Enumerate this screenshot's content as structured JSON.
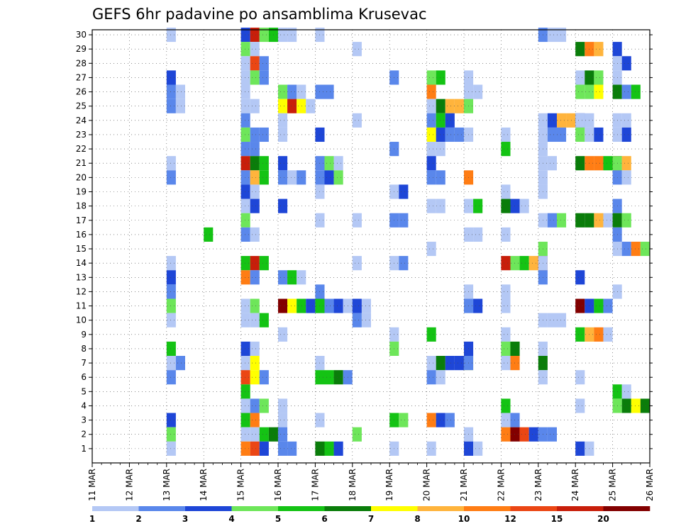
{
  "chart_data": {
    "type": "heatmap",
    "title": "GEFS 6hr padavine po ansamblima Krusevac",
    "x_tick_labels": [
      "11 MAR",
      "12 MAR",
      "13 MAR",
      "14 MAR",
      "15 MAR",
      "16 MAR",
      "17 MAR",
      "18 MAR",
      "19 MAR",
      "20 MAR",
      "21 MAR",
      "22 MAR",
      "23 MAR",
      "24 MAR",
      "25 MAR",
      "26 MAR"
    ],
    "x_range": [
      "11 MAR",
      "26 MAR"
    ],
    "time_step_hours": 6,
    "y_tick_labels": [
      "1",
      "2",
      "3",
      "4",
      "5",
      "6",
      "7",
      "8",
      "9",
      "10",
      "11",
      "12",
      "13",
      "14",
      "15",
      "16",
      "17",
      "18",
      "19",
      "20",
      "21",
      "22",
      "23",
      "24",
      "25",
      "26",
      "27",
      "28",
      "29",
      "30"
    ],
    "y_range": [
      0,
      30
    ],
    "grid": true,
    "colorbar": {
      "placement": "bottom",
      "labels": [
        "1",
        "2",
        "3",
        "4",
        "5",
        "6",
        "7",
        "8",
        "10",
        "12",
        "15",
        "20"
      ],
      "colors": [
        "#b4c8f5",
        "#5a87eb",
        "#1e46d7",
        "#6ee65a",
        "#14c314",
        "#0a7d0a",
        "#ffff00",
        "#ffb43c",
        "#ff7d14",
        "#eb4614",
        "#c81e0a",
        "#820000"
      ]
    },
    "cells": [
      [
        30,
        13,
        0
      ],
      [
        30,
        15,
        2
      ],
      [
        30,
        15,
        10
      ],
      [
        30,
        15,
        3
      ],
      [
        30,
        15,
        4
      ],
      [
        30,
        16,
        0
      ],
      [
        30,
        16,
        0
      ],
      [
        30,
        17,
        0
      ],
      [
        30,
        23,
        1
      ],
      [
        30,
        23,
        0
      ],
      [
        30,
        23,
        0
      ],
      [
        29,
        15,
        3
      ],
      [
        29,
        15,
        0
      ],
      [
        29,
        18,
        0
      ],
      [
        29,
        24,
        5
      ],
      [
        29,
        24,
        8
      ],
      [
        29,
        24,
        7
      ],
      [
        29,
        25,
        2
      ],
      [
        28,
        15,
        0
      ],
      [
        28,
        15,
        9
      ],
      [
        28,
        15,
        1
      ],
      [
        28,
        25,
        0
      ],
      [
        28,
        25,
        2
      ],
      [
        28,
        26,
        3
      ],
      [
        27,
        13,
        2
      ],
      [
        27,
        15,
        0
      ],
      [
        27,
        15,
        3
      ],
      [
        27,
        15,
        1
      ],
      [
        27,
        19,
        1
      ],
      [
        27,
        20,
        3
      ],
      [
        27,
        20,
        4
      ],
      [
        27,
        21,
        0
      ],
      [
        27,
        24,
        0
      ],
      [
        27,
        24,
        5
      ],
      [
        27,
        24,
        3
      ],
      [
        27,
        25,
        0
      ],
      [
        26,
        13,
        1
      ],
      [
        26,
        13,
        0
      ],
      [
        26,
        15,
        0
      ],
      [
        26,
        16,
        3
      ],
      [
        26,
        16,
        1
      ],
      [
        26,
        16,
        0
      ],
      [
        26,
        17,
        1
      ],
      [
        26,
        17,
        1
      ],
      [
        26,
        20,
        8
      ],
      [
        26,
        21,
        0
      ],
      [
        26,
        21,
        0
      ],
      [
        26,
        24,
        3
      ],
      [
        26,
        24,
        3
      ],
      [
        26,
        24,
        6
      ],
      [
        26,
        25,
        5
      ],
      [
        26,
        25,
        1
      ],
      [
        26,
        25,
        4
      ],
      [
        26,
        26,
        1
      ],
      [
        25,
        13,
        1
      ],
      [
        25,
        13,
        0
      ],
      [
        25,
        15,
        0
      ],
      [
        25,
        15,
        0
      ],
      [
        25,
        16,
        6
      ],
      [
        25,
        16,
        10
      ],
      [
        25,
        16,
        6
      ],
      [
        25,
        16,
        0
      ],
      [
        25,
        20,
        0
      ],
      [
        25,
        20,
        5
      ],
      [
        25,
        20,
        7
      ],
      [
        25,
        20,
        7
      ],
      [
        25,
        20,
        3
      ],
      [
        24,
        15,
        1
      ],
      [
        24,
        16,
        0
      ],
      [
        24,
        18,
        0
      ],
      [
        24,
        20,
        1
      ],
      [
        24,
        20,
        4
      ],
      [
        24,
        20,
        2
      ],
      [
        24,
        23,
        0
      ],
      [
        24,
        23,
        2
      ],
      [
        24,
        23,
        7
      ],
      [
        24,
        23,
        7
      ],
      [
        24,
        23,
        2
      ],
      [
        24,
        24,
        0
      ],
      [
        24,
        24,
        0
      ],
      [
        24,
        25,
        0
      ],
      [
        24,
        25,
        0
      ],
      [
        23,
        15,
        3
      ],
      [
        23,
        15,
        1
      ],
      [
        23,
        15,
        1
      ],
      [
        23,
        16,
        0
      ],
      [
        23,
        17,
        2
      ],
      [
        23,
        20,
        6
      ],
      [
        23,
        20,
        2
      ],
      [
        23,
        20,
        1
      ],
      [
        23,
        20,
        1
      ],
      [
        23,
        21,
        0
      ],
      [
        23,
        22,
        0
      ],
      [
        23,
        23,
        0
      ],
      [
        23,
        23,
        1
      ],
      [
        23,
        23,
        1
      ],
      [
        23,
        24,
        3
      ],
      [
        23,
        24,
        0
      ],
      [
        23,
        24,
        2
      ],
      [
        23,
        25,
        0
      ],
      [
        23,
        25,
        2
      ],
      [
        23,
        26,
        1
      ],
      [
        22,
        15,
        1
      ],
      [
        22,
        15,
        1
      ],
      [
        22,
        19,
        1
      ],
      [
        22,
        20,
        0
      ],
      [
        22,
        20,
        0
      ],
      [
        22,
        22,
        4
      ],
      [
        22,
        23,
        0
      ],
      [
        21,
        13,
        0
      ],
      [
        21,
        15,
        10
      ],
      [
        21,
        15,
        5
      ],
      [
        21,
        15,
        4
      ],
      [
        21,
        16,
        2
      ],
      [
        21,
        17,
        1
      ],
      [
        21,
        17,
        3
      ],
      [
        21,
        17,
        0
      ],
      [
        21,
        20,
        2
      ],
      [
        21,
        23,
        0
      ],
      [
        21,
        23,
        0
      ],
      [
        21,
        24,
        5
      ],
      [
        21,
        24,
        8
      ],
      [
        21,
        24,
        8
      ],
      [
        21,
        24,
        4
      ],
      [
        21,
        24,
        10
      ],
      [
        21,
        25,
        3
      ],
      [
        21,
        25,
        7
      ],
      [
        21,
        26,
        6
      ],
      [
        20,
        13,
        1
      ],
      [
        20,
        15,
        1
      ],
      [
        20,
        15,
        7
      ],
      [
        20,
        15,
        4
      ],
      [
        20,
        16,
        1
      ],
      [
        20,
        16,
        0
      ],
      [
        20,
        16,
        1
      ],
      [
        20,
        17,
        1
      ],
      [
        20,
        17,
        2
      ],
      [
        20,
        17,
        3
      ],
      [
        20,
        20,
        1
      ],
      [
        20,
        20,
        1
      ],
      [
        20,
        21,
        8
      ],
      [
        20,
        23,
        0
      ],
      [
        20,
        25,
        1
      ],
      [
        20,
        25,
        0
      ],
      [
        19,
        15,
        2
      ],
      [
        19,
        15,
        0
      ],
      [
        19,
        17,
        0
      ],
      [
        19,
        19,
        0
      ],
      [
        19,
        19,
        2
      ],
      [
        19,
        22,
        0
      ],
      [
        19,
        23,
        0
      ],
      [
        18,
        15,
        0
      ],
      [
        18,
        15,
        2
      ],
      [
        18,
        16,
        2
      ],
      [
        18,
        20,
        0
      ],
      [
        18,
        20,
        0
      ],
      [
        18,
        21,
        0
      ],
      [
        18,
        21,
        4
      ],
      [
        18,
        22,
        5
      ],
      [
        18,
        22,
        2
      ],
      [
        18,
        22,
        0
      ],
      [
        18,
        25,
        1
      ],
      [
        17,
        15,
        3
      ],
      [
        17,
        17,
        0
      ],
      [
        17,
        18,
        0
      ],
      [
        17,
        19,
        1
      ],
      [
        17,
        19,
        1
      ],
      [
        17,
        23,
        0
      ],
      [
        17,
        23,
        1
      ],
      [
        17,
        23,
        3
      ],
      [
        17,
        24,
        5
      ],
      [
        17,
        24,
        5
      ],
      [
        17,
        24,
        7
      ],
      [
        17,
        24,
        0
      ],
      [
        17,
        25,
        5
      ],
      [
        17,
        25,
        3
      ],
      [
        16,
        14,
        4
      ],
      [
        16,
        15,
        1
      ],
      [
        16,
        15,
        0
      ],
      [
        16,
        21,
        0
      ],
      [
        16,
        21,
        0
      ],
      [
        16,
        22,
        0
      ],
      [
        16,
        25,
        1
      ],
      [
        16,
        26,
        2
      ],
      [
        15,
        20,
        0
      ],
      [
        15,
        23,
        3
      ],
      [
        15,
        25,
        0
      ],
      [
        15,
        25,
        1
      ],
      [
        15,
        25,
        8
      ],
      [
        15,
        25,
        3
      ],
      [
        14,
        13,
        0
      ],
      [
        14,
        15,
        4
      ],
      [
        14,
        15,
        10
      ],
      [
        14,
        15,
        4
      ],
      [
        14,
        18,
        0
      ],
      [
        14,
        19,
        0
      ],
      [
        14,
        19,
        1
      ],
      [
        14,
        22,
        10
      ],
      [
        14,
        22,
        3
      ],
      [
        14,
        22,
        4
      ],
      [
        14,
        22,
        7
      ],
      [
        14,
        22,
        10
      ],
      [
        14,
        23,
        0
      ],
      [
        13,
        13,
        2
      ],
      [
        13,
        15,
        8
      ],
      [
        13,
        15,
        1
      ],
      [
        13,
        16,
        1
      ],
      [
        13,
        16,
        4
      ],
      [
        13,
        16,
        0
      ],
      [
        13,
        23,
        1
      ],
      [
        13,
        24,
        2
      ],
      [
        12,
        13,
        1
      ],
      [
        12,
        17,
        1
      ],
      [
        12,
        21,
        0
      ],
      [
        12,
        22,
        0
      ],
      [
        12,
        25,
        0
      ],
      [
        11,
        13,
        3
      ],
      [
        11,
        15,
        0
      ],
      [
        11,
        15,
        3
      ],
      [
        11,
        16,
        11
      ],
      [
        11,
        16,
        6
      ],
      [
        11,
        16,
        4
      ],
      [
        11,
        16,
        2
      ],
      [
        11,
        16,
        2
      ],
      [
        11,
        17,
        4
      ],
      [
        11,
        17,
        1
      ],
      [
        11,
        17,
        2
      ],
      [
        11,
        17,
        0
      ],
      [
        11,
        17,
        0
      ],
      [
        11,
        18,
        2
      ],
      [
        11,
        18,
        0
      ],
      [
        11,
        21,
        1
      ],
      [
        11,
        21,
        2
      ],
      [
        11,
        22,
        0
      ],
      [
        11,
        24,
        11
      ],
      [
        11,
        24,
        2
      ],
      [
        11,
        24,
        4
      ],
      [
        11,
        24,
        1
      ],
      [
        10,
        13,
        0
      ],
      [
        10,
        15,
        0
      ],
      [
        10,
        15,
        0
      ],
      [
        10,
        15,
        4
      ],
      [
        10,
        18,
        1
      ],
      [
        10,
        18,
        0
      ],
      [
        10,
        23,
        0
      ],
      [
        10,
        23,
        0
      ],
      [
        10,
        23,
        0
      ],
      [
        9,
        16,
        0
      ],
      [
        9,
        19,
        0
      ],
      [
        9,
        20,
        4
      ],
      [
        9,
        22,
        0
      ],
      [
        9,
        24,
        4
      ],
      [
        9,
        24,
        7
      ],
      [
        9,
        24,
        8
      ],
      [
        9,
        24,
        0
      ],
      [
        9,
        26,
        0
      ],
      [
        8,
        13,
        4
      ],
      [
        8,
        15,
        2
      ],
      [
        8,
        15,
        0
      ],
      [
        8,
        19,
        3
      ],
      [
        8,
        21,
        2
      ],
      [
        8,
        22,
        3
      ],
      [
        8,
        22,
        5
      ],
      [
        8,
        23,
        0
      ],
      [
        7,
        13,
        0
      ],
      [
        7,
        13,
        1
      ],
      [
        7,
        15,
        0
      ],
      [
        7,
        15,
        6
      ],
      [
        7,
        17,
        0
      ],
      [
        7,
        20,
        0
      ],
      [
        7,
        20,
        5
      ],
      [
        7,
        20,
        2
      ],
      [
        7,
        20,
        2
      ],
      [
        7,
        20,
        6
      ],
      [
        7,
        21,
        1
      ],
      [
        7,
        22,
        0
      ],
      [
        7,
        22,
        8
      ],
      [
        7,
        23,
        5
      ],
      [
        6,
        13,
        1
      ],
      [
        6,
        15,
        9
      ],
      [
        6,
        15,
        6
      ],
      [
        6,
        15,
        1
      ],
      [
        6,
        17,
        4
      ],
      [
        6,
        17,
        4
      ],
      [
        6,
        17,
        5
      ],
      [
        6,
        17,
        1
      ],
      [
        6,
        20,
        1
      ],
      [
        6,
        20,
        0
      ],
      [
        6,
        23,
        0
      ],
      [
        6,
        24,
        0
      ],
      [
        5,
        15,
        4
      ],
      [
        5,
        25,
        4
      ],
      [
        5,
        25,
        0
      ],
      [
        4,
        15,
        0
      ],
      [
        4,
        15,
        1
      ],
      [
        4,
        15,
        3
      ],
      [
        4,
        16,
        0
      ],
      [
        4,
        22,
        4
      ],
      [
        4,
        24,
        0
      ],
      [
        4,
        25,
        3
      ],
      [
        4,
        25,
        5
      ],
      [
        4,
        25,
        6
      ],
      [
        4,
        25,
        5
      ],
      [
        4,
        26,
        5
      ],
      [
        3,
        13,
        2
      ],
      [
        3,
        15,
        4
      ],
      [
        3,
        15,
        8
      ],
      [
        3,
        16,
        0
      ],
      [
        3,
        17,
        0
      ],
      [
        3,
        19,
        4
      ],
      [
        3,
        19,
        3
      ],
      [
        3,
        20,
        8
      ],
      [
        3,
        20,
        2
      ],
      [
        3,
        20,
        1
      ],
      [
        3,
        22,
        0
      ],
      [
        3,
        22,
        1
      ],
      [
        2,
        13,
        3
      ],
      [
        2,
        15,
        0
      ],
      [
        2,
        15,
        0
      ],
      [
        2,
        15,
        4
      ],
      [
        2,
        15,
        5
      ],
      [
        2,
        15,
        1
      ],
      [
        2,
        18,
        3
      ],
      [
        2,
        21,
        0
      ],
      [
        2,
        22,
        8
      ],
      [
        2,
        22,
        11
      ],
      [
        2,
        22,
        9
      ],
      [
        2,
        22,
        2
      ],
      [
        2,
        23,
        1
      ],
      [
        2,
        23,
        1
      ],
      [
        1,
        13,
        0
      ],
      [
        1,
        15,
        8
      ],
      [
        1,
        15,
        9
      ],
      [
        1,
        15,
        2
      ],
      [
        1,
        16,
        1
      ],
      [
        1,
        16,
        1
      ],
      [
        1,
        17,
        5
      ],
      [
        1,
        17,
        4
      ],
      [
        1,
        17,
        2
      ],
      [
        1,
        19,
        0
      ],
      [
        1,
        20,
        0
      ],
      [
        1,
        21,
        2
      ],
      [
        1,
        21,
        0
      ],
      [
        1,
        24,
        2
      ],
      [
        1,
        24,
        0
      ]
    ]
  }
}
